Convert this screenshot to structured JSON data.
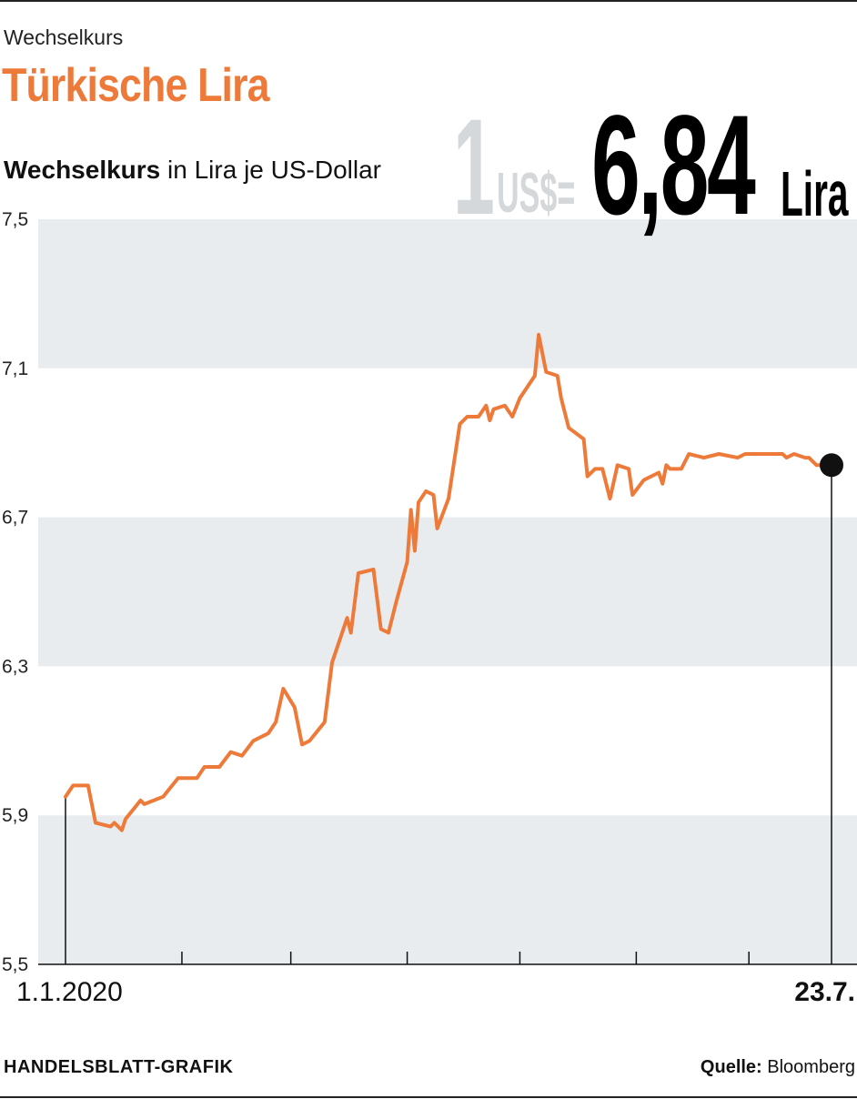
{
  "header": {
    "kicker": "Wechselkurs",
    "title": "Türkische Lira",
    "subtitle_bold": "Wechselkurs",
    "subtitle_rest": " in Lira je US-Dollar"
  },
  "callout": {
    "one": "1",
    "currency": "US$=",
    "value": "6,84",
    "unit": "Lira"
  },
  "footer": {
    "credit": "HANDELSBLATT-GRAFIK",
    "source_label": "Quelle:",
    "source_value": " Bloomberg"
  },
  "colors": {
    "line": "#ee7a3a",
    "band": "#e9ecee",
    "title": "#ee7a3a"
  },
  "chart_data": {
    "type": "line",
    "title": "Türkische Lira",
    "ylabel": "Wechselkurs in Lira je US-Dollar",
    "ylim": [
      5.5,
      7.5
    ],
    "yticks": [
      "7,5",
      "7,1",
      "6,7",
      "6,3",
      "5,9",
      "5,5"
    ],
    "ytick_values": [
      7.5,
      7.1,
      6.7,
      6.3,
      5.9,
      5.5
    ],
    "x_start_label": "1.1.2020",
    "x_end_label": "23.7.",
    "x_range_days": [
      0,
      204
    ],
    "month_ticks_days": [
      31,
      60,
      91,
      121,
      152,
      182
    ],
    "grid": "alternating bands",
    "end_value": 6.84,
    "series": [
      {
        "values": [
          [
            0,
            5.95
          ],
          [
            2,
            5.98
          ],
          [
            6,
            5.98
          ],
          [
            8,
            5.88
          ],
          [
            12,
            5.87
          ],
          [
            13,
            5.88
          ],
          [
            15,
            5.86
          ],
          [
            16,
            5.89
          ],
          [
            20,
            5.94
          ],
          [
            21,
            5.93
          ],
          [
            26,
            5.95
          ],
          [
            30,
            6.0
          ],
          [
            35,
            6.0
          ],
          [
            37,
            6.03
          ],
          [
            41,
            6.03
          ],
          [
            44,
            6.07
          ],
          [
            47,
            6.06
          ],
          [
            50,
            6.1
          ],
          [
            54,
            6.12
          ],
          [
            56,
            6.15
          ],
          [
            58,
            6.24
          ],
          [
            61,
            6.19
          ],
          [
            63,
            6.09
          ],
          [
            65,
            6.1
          ],
          [
            69,
            6.15
          ],
          [
            71,
            6.31
          ],
          [
            75,
            6.43
          ],
          [
            76,
            6.39
          ],
          [
            78,
            6.55
          ],
          [
            82,
            6.56
          ],
          [
            84,
            6.4
          ],
          [
            86,
            6.39
          ],
          [
            88,
            6.47
          ],
          [
            91,
            6.58
          ],
          [
            92,
            6.72
          ],
          [
            93,
            6.61
          ],
          [
            94,
            6.74
          ],
          [
            96,
            6.77
          ],
          [
            98,
            6.76
          ],
          [
            99,
            6.67
          ],
          [
            102,
            6.75
          ],
          [
            105,
            6.95
          ],
          [
            107,
            6.97
          ],
          [
            110,
            6.97
          ],
          [
            112,
            7.0
          ],
          [
            113,
            6.96
          ],
          [
            114,
            6.99
          ],
          [
            117,
            7.0
          ],
          [
            119,
            6.97
          ],
          [
            121,
            7.02
          ],
          [
            125,
            7.08
          ],
          [
            126,
            7.19
          ],
          [
            128,
            7.09
          ],
          [
            131,
            7.08
          ],
          [
            132,
            7.02
          ],
          [
            134,
            6.94
          ],
          [
            138,
            6.91
          ],
          [
            139,
            6.81
          ],
          [
            141,
            6.83
          ],
          [
            143,
            6.83
          ],
          [
            145,
            6.75
          ],
          [
            147,
            6.84
          ],
          [
            150,
            6.83
          ],
          [
            151,
            6.76
          ],
          [
            154,
            6.8
          ],
          [
            158,
            6.82
          ],
          [
            159,
            6.79
          ],
          [
            160,
            6.84
          ],
          [
            161,
            6.83
          ],
          [
            164,
            6.83
          ],
          [
            166,
            6.87
          ],
          [
            170,
            6.86
          ],
          [
            174,
            6.87
          ],
          [
            179,
            6.86
          ],
          [
            181,
            6.87
          ],
          [
            187,
            6.87
          ],
          [
            191,
            6.87
          ],
          [
            192,
            6.86
          ],
          [
            194,
            6.87
          ],
          [
            197,
            6.86
          ],
          [
            198,
            6.86
          ],
          [
            200,
            6.84
          ],
          [
            204,
            6.84
          ]
        ]
      }
    ]
  }
}
